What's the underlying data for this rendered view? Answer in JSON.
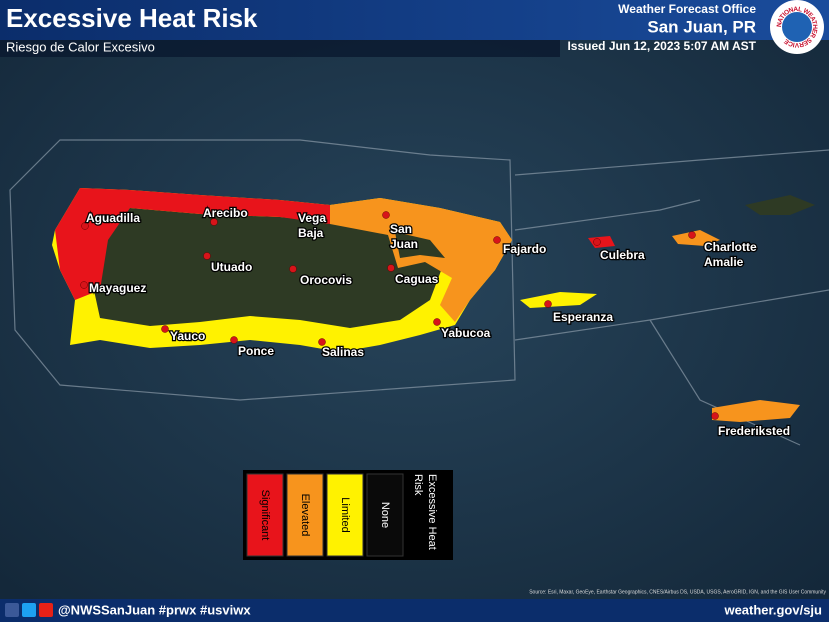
{
  "header": {
    "title": "Excessive Heat Risk",
    "subtitle": "Riesgo de Calor Excesivo",
    "office": "Weather Forecast Office",
    "location": "San Juan, PR",
    "issued": "Issued Jun 12, 2023 5:07 AM AST",
    "logo_text": "NATIONAL WEATHER SERVICE"
  },
  "places": [
    {
      "lines": [
        "Aguadilla"
      ]
    },
    {
      "lines": [
        "Arecibo"
      ]
    },
    {
      "lines": [
        "Vega",
        "Baja"
      ]
    },
    {
      "lines": [
        "San",
        "Juan"
      ]
    },
    {
      "lines": [
        "Fajardo"
      ]
    },
    {
      "lines": [
        "Culebra"
      ]
    },
    {
      "lines": [
        "Charlotte",
        "Amalie"
      ]
    },
    {
      "lines": [
        "Utuado"
      ]
    },
    {
      "lines": [
        "Orocovis"
      ]
    },
    {
      "lines": [
        "Caguas"
      ]
    },
    {
      "lines": [
        "Mayaguez"
      ]
    },
    {
      "lines": [
        "Esperanza"
      ]
    },
    {
      "lines": [
        "Yauco"
      ]
    },
    {
      "lines": [
        "Yabucoa"
      ]
    },
    {
      "lines": [
        "Ponce"
      ]
    },
    {
      "lines": [
        "Salinas"
      ]
    },
    {
      "lines": [
        "Frederiksted"
      ]
    }
  ],
  "legend": {
    "title": [
      "Excessive Heat",
      "Risk"
    ],
    "items": [
      {
        "label": "Significant",
        "color": "#e8141b"
      },
      {
        "label": "Elevated",
        "color": "#f7941d"
      },
      {
        "label": "Limited",
        "color": "#fff200"
      },
      {
        "label": "None",
        "color": "#0a0a0a"
      }
    ]
  },
  "attribution": "Source: Esri, Maxar, GeoEye, Earthstar Geographics, CNES/Airbus DS, USDA, USGS, AeroGRID, IGN, and the GIS User Community",
  "footer": {
    "handle": "@NWSSanJuan #prwx #usviwx",
    "website": "weather.gov/sju"
  }
}
